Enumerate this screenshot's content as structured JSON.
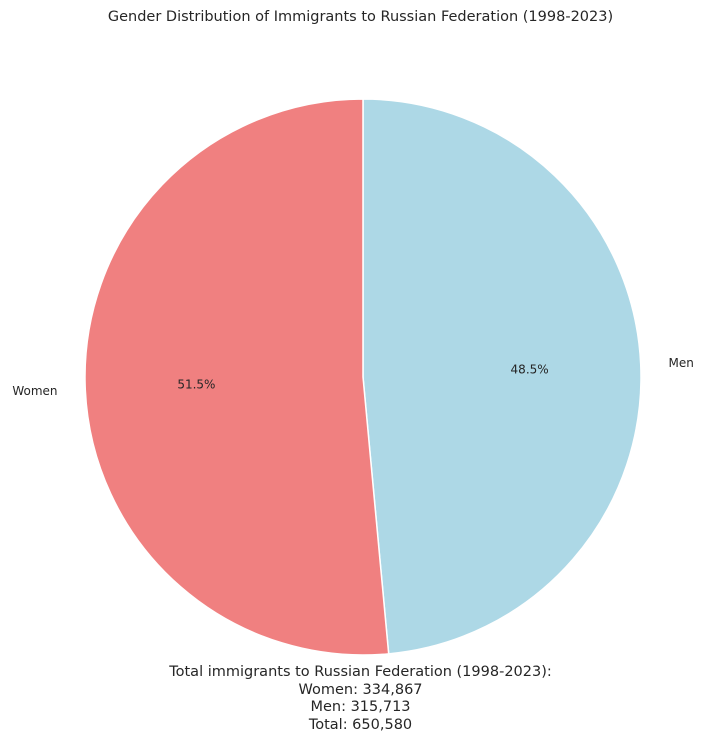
{
  "chart_data": {
    "type": "pie",
    "title": "Gender Distribution of Immigrants to Russian Federation (1998-2023)",
    "slices": [
      {
        "label": "Men",
        "value": 315713,
        "percent_label": "48.5%",
        "color": "#add8e6"
      },
      {
        "label": "Women",
        "value": 334867,
        "percent_label": "51.5%",
        "color": "#f08080"
      }
    ],
    "start_angle_deg": 90,
    "direction": "clockwise",
    "summary": {
      "heading": "Total immigrants to Russian Federation (1998-2023):",
      "women_line": "Women: 334,867",
      "men_line": "Men: 315,713",
      "total_line": "Total: 650,580"
    }
  }
}
